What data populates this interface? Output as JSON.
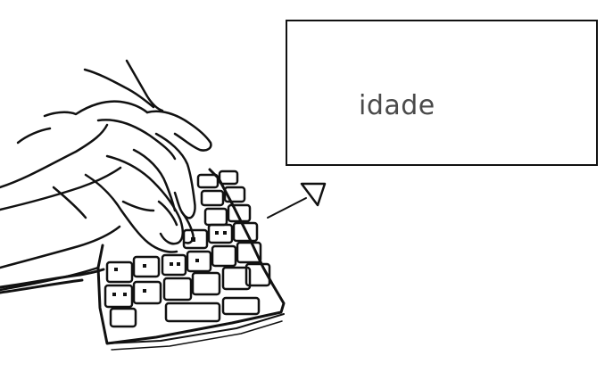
{
  "display": {
    "text": "idade"
  },
  "colors": {
    "ink": "#111111",
    "text": "#4a4a4a",
    "background": "#ffffff"
  },
  "icons": {
    "pointer": "outline-triangle-arrow-icon"
  }
}
